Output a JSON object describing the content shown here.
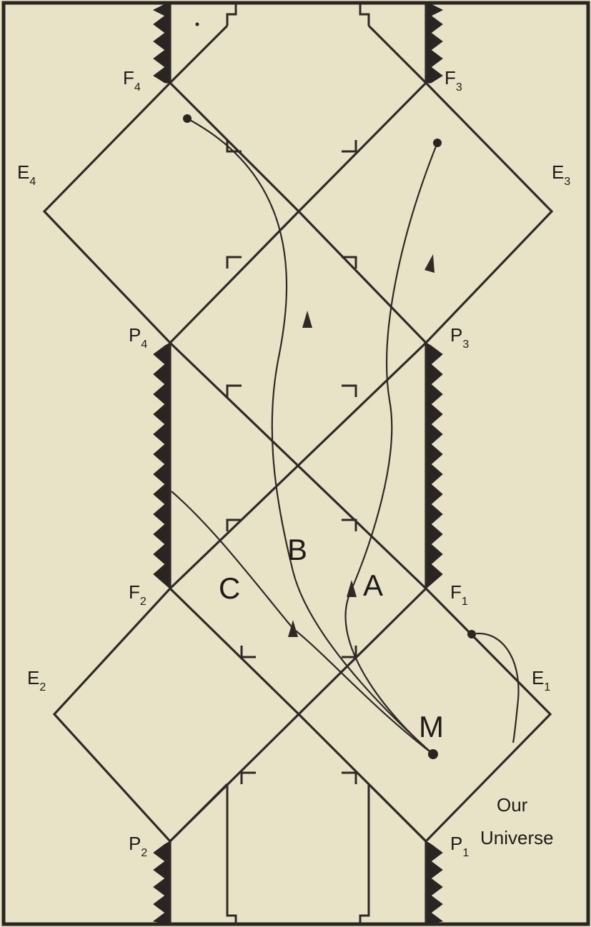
{
  "points": {
    "F4": {
      "base": "F",
      "sub": "4"
    },
    "F3": {
      "base": "F",
      "sub": "3"
    },
    "E4": {
      "base": "E",
      "sub": "4"
    },
    "E3": {
      "base": "E",
      "sub": "3"
    },
    "P4": {
      "base": "P",
      "sub": "4"
    },
    "P3": {
      "base": "P",
      "sub": "3"
    },
    "F2": {
      "base": "F",
      "sub": "2"
    },
    "F1": {
      "base": "F",
      "sub": "1"
    },
    "E2": {
      "base": "E",
      "sub": "2"
    },
    "E1": {
      "base": "E",
      "sub": "1"
    },
    "P2": {
      "base": "P",
      "sub": "2"
    },
    "P1": {
      "base": "P",
      "sub": "1"
    }
  },
  "paths": {
    "A": "A",
    "B": "B",
    "C": "C"
  },
  "origin_label": "M",
  "callout": {
    "line1": "Our",
    "line2": "Universe"
  }
}
